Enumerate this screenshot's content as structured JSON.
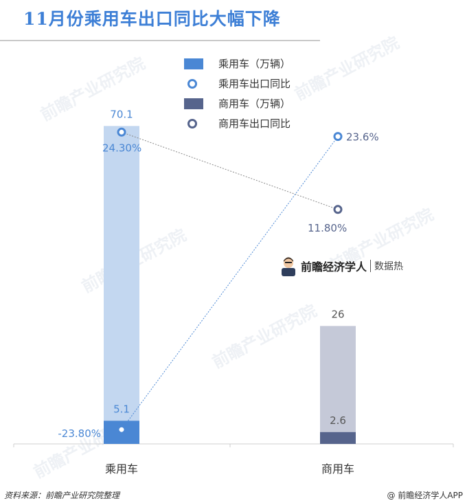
{
  "title": "11月份乘用车出口同比大幅下降",
  "watermark": "前瞻产业研究院",
  "badge": {
    "brand": "前瞻经济学人",
    "tag": "数据热"
  },
  "footer": {
    "source": "资料来源：前瞻产业研究院整理",
    "brand": "@ 前瞻经济学人APP"
  },
  "colors": {
    "title": "#3d7fd6",
    "passenger_export": "#c3d7f0",
    "passenger_total": "#4a87d4",
    "commercial_export": "#c5c9d8",
    "commercial_total": "#56648c"
  },
  "chart_data": {
    "type": "bar",
    "categories": [
      "乘用车",
      "商用车"
    ],
    "series": [
      {
        "name": "乘用车（万辆）",
        "legend_shape": "bar",
        "values": [
          70.1,
          5.1
        ],
        "value_labels": [
          "70.1",
          "5.1"
        ]
      },
      {
        "name": "乘用车出口同比",
        "legend_shape": "ring",
        "values": [
          24.3,
          -23.8
        ],
        "value_labels": [
          "24.30%",
          "-23.80%"
        ]
      },
      {
        "name": "商用车（万辆）",
        "legend_shape": "bar",
        "values": [
          26,
          2.6
        ],
        "value_labels": [
          "26",
          "2.6"
        ]
      },
      {
        "name": "商用车出口同比",
        "legend_shape": "ring",
        "values": [
          11.8,
          23.6
        ],
        "value_labels": [
          "11.80%",
          "23.6%"
        ]
      }
    ],
    "grid": false,
    "legend_position": "top-right"
  }
}
